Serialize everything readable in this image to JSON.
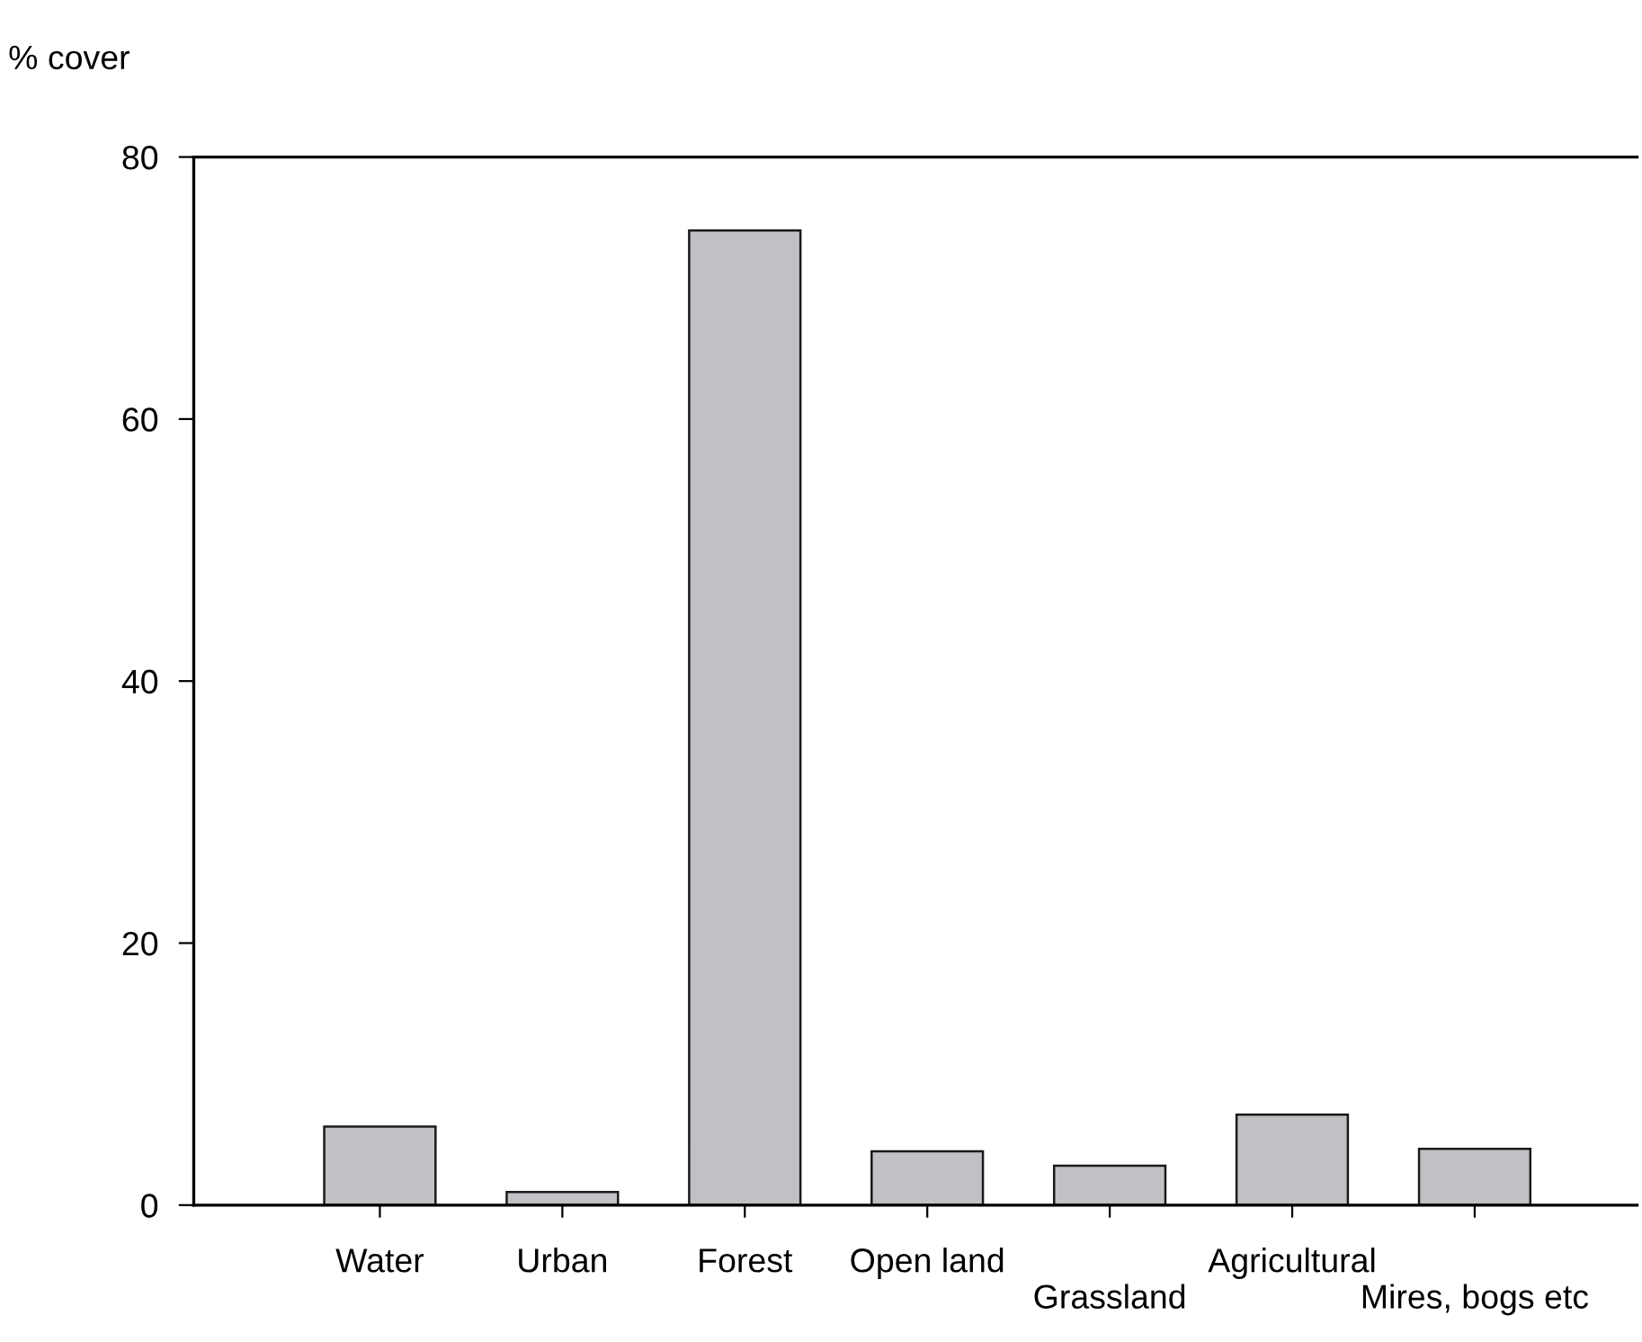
{
  "chart_data": {
    "type": "bar",
    "ylabel": "% cover",
    "categories": [
      "Water",
      "Urban",
      "Forest",
      "Open land",
      "Grassland",
      "Agricultural",
      "Mires, bogs etc"
    ],
    "values": [
      6.0,
      1.0,
      74.4,
      4.1,
      3.0,
      6.9,
      4.3
    ],
    "color": "#c0c1c4",
    "ylim": [
      0,
      80
    ],
    "yticks": [
      0,
      20,
      40,
      60,
      80
    ],
    "grid": false,
    "legend": false
  }
}
